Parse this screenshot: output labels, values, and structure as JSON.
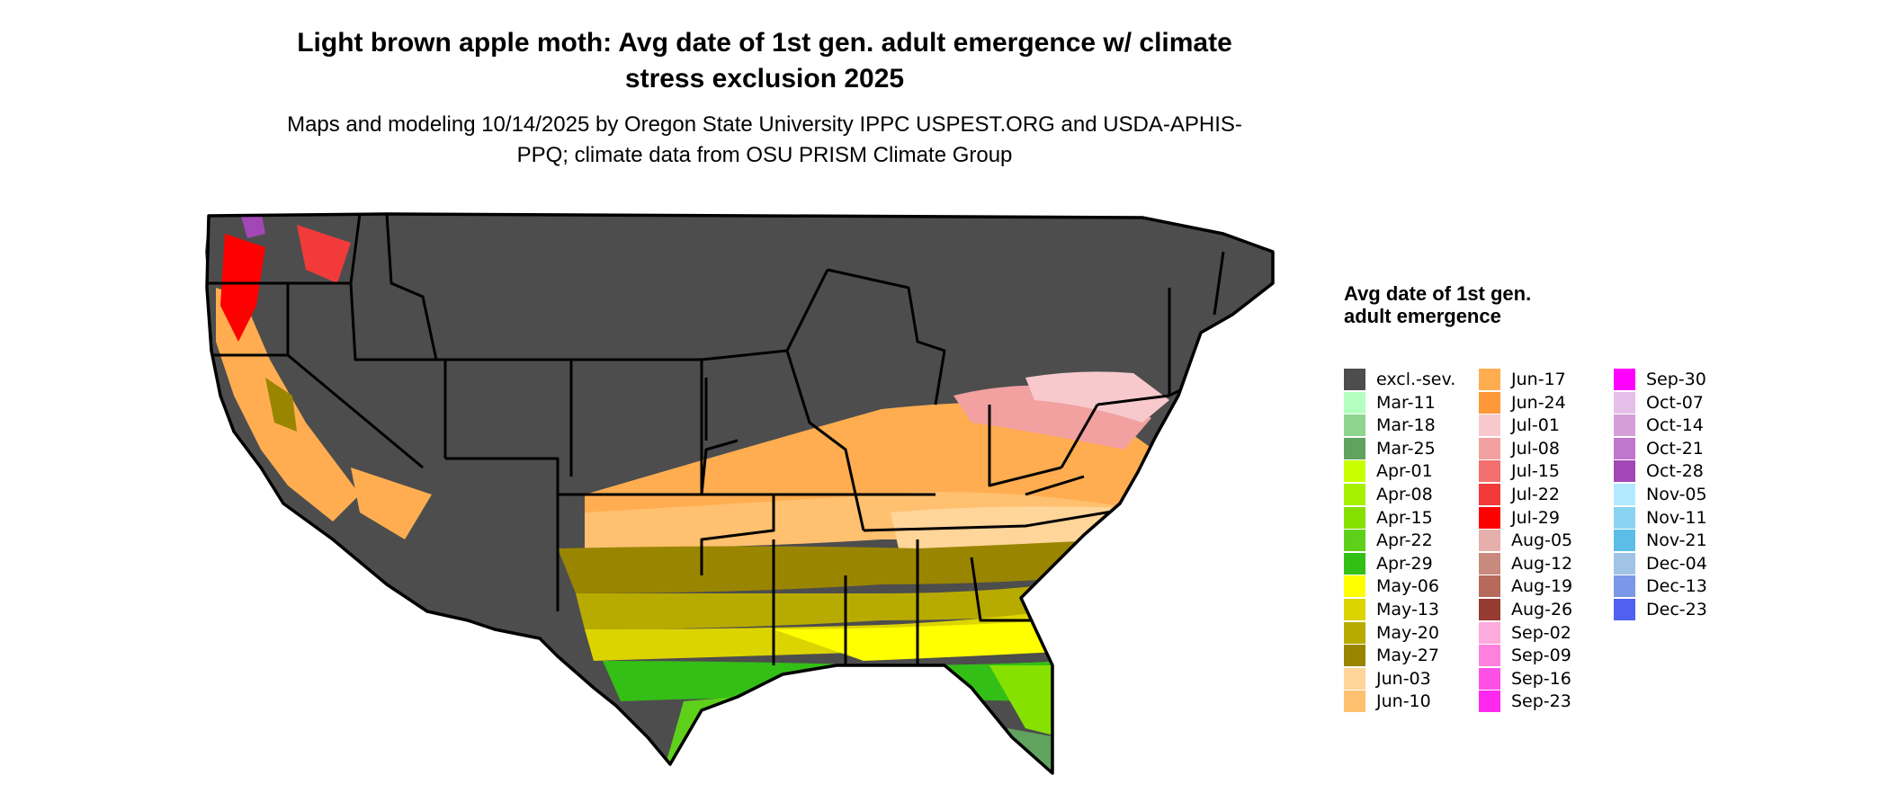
{
  "map": {
    "title": "Light brown apple moth: Avg date of 1st gen. adult emergence w/ climate stress exclusion 2025",
    "subtitle": "Maps and modeling 10/14/2025 by Oregon State University IPPC USPEST.ORG and USDA-APHIS-PPQ; climate data from OSU PRISM Climate Group",
    "region": "Contiguous United States",
    "excluded_color": "#4d4d4d",
    "state_border_color": "#000000"
  },
  "legend": {
    "title": "Avg date of 1st gen. adult emergence",
    "columns": [
      [
        {
          "label": "excl.-sev.",
          "color": "#4d4d4d"
        },
        {
          "label": "Mar-11",
          "color": "#b3ffbf"
        },
        {
          "label": "Mar-18",
          "color": "#8fd48f"
        },
        {
          "label": "Mar-25",
          "color": "#5fa35f"
        },
        {
          "label": "Apr-01",
          "color": "#c8ff00"
        },
        {
          "label": "Apr-08",
          "color": "#a6f000"
        },
        {
          "label": "Apr-15",
          "color": "#86e000"
        },
        {
          "label": "Apr-22",
          "color": "#5fd01a"
        },
        {
          "label": "Apr-29",
          "color": "#33bf16"
        },
        {
          "label": "May-06",
          "color": "#ffff00"
        },
        {
          "label": "May-13",
          "color": "#dcd400"
        },
        {
          "label": "May-20",
          "color": "#b8ab00"
        },
        {
          "label": "May-27",
          "color": "#9a8500"
        },
        {
          "label": "Jun-03",
          "color": "#ffd59a"
        },
        {
          "label": "Jun-10",
          "color": "#ffc070"
        }
      ],
      [
        {
          "label": "Jun-17",
          "color": "#ffad50"
        },
        {
          "label": "Jun-24",
          "color": "#ff9838"
        },
        {
          "label": "Jul-01",
          "color": "#f7c9cc"
        },
        {
          "label": "Jul-08",
          "color": "#f2a0a0"
        },
        {
          "label": "Jul-15",
          "color": "#f46f6f"
        },
        {
          "label": "Jul-22",
          "color": "#f23a3a"
        },
        {
          "label": "Jul-29",
          "color": "#ff0000"
        },
        {
          "label": "Aug-05",
          "color": "#e5b0ab"
        },
        {
          "label": "Aug-12",
          "color": "#c98a7e"
        },
        {
          "label": "Aug-19",
          "color": "#b56a5c"
        },
        {
          "label": "Aug-26",
          "color": "#963b31"
        },
        {
          "label": "Sep-02",
          "color": "#ffaadd"
        },
        {
          "label": "Sep-09",
          "color": "#ff80dd"
        },
        {
          "label": "Sep-16",
          "color": "#ff50e6"
        },
        {
          "label": "Sep-23",
          "color": "#ff28ee"
        }
      ],
      [
        {
          "label": "Sep-30",
          "color": "#ff00ff"
        },
        {
          "label": "Oct-07",
          "color": "#e6bfe8"
        },
        {
          "label": "Oct-14",
          "color": "#d49ed8"
        },
        {
          "label": "Oct-21",
          "color": "#c076cc"
        },
        {
          "label": "Oct-28",
          "color": "#a447b6"
        },
        {
          "label": "Nov-05",
          "color": "#b3e9ff"
        },
        {
          "label": "Nov-11",
          "color": "#8ad4f2"
        },
        {
          "label": "Nov-21",
          "color": "#5bbde8"
        },
        {
          "label": "Dec-04",
          "color": "#a0c3e6"
        },
        {
          "label": "Dec-13",
          "color": "#7b98e8"
        },
        {
          "label": "Dec-23",
          "color": "#5061f0"
        }
      ]
    ]
  }
}
